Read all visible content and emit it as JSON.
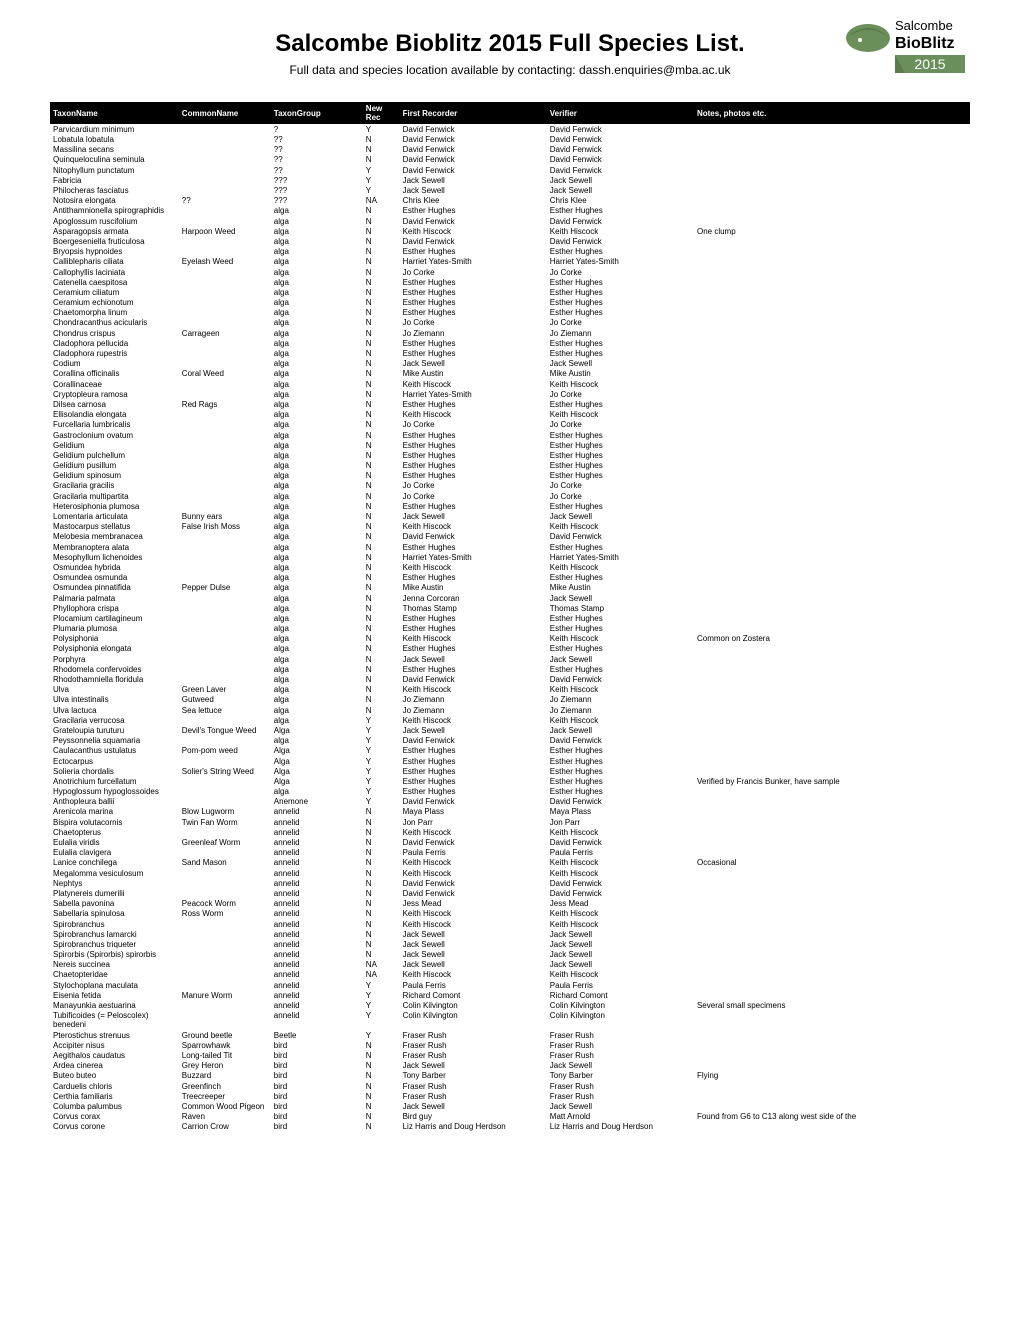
{
  "title": "Salcombe Bioblitz 2015 Full Species List.",
  "subtitle": "Full data and species location available by contacting: dassh.enquiries@mba.ac.uk",
  "logo": {
    "top_text": "Salcombe",
    "mid_text": "BioBlitz",
    "year": "2015",
    "icon_color": "#6b8f5a"
  },
  "table": {
    "columns": [
      "TaxonName",
      "CommonName",
      "TaxonGroup",
      "New Rec",
      "First Recorder",
      "Verifier",
      "Notes, photos etc."
    ],
    "rows": [
      [
        "Parvicardium minimum",
        "",
        "?",
        "Y",
        "David Fenwick",
        "David Fenwick",
        ""
      ],
      [
        "Lobatula lobatula",
        "",
        "??",
        "N",
        "David Fenwick",
        "David Fenwick",
        ""
      ],
      [
        "Massilina secans",
        "",
        "??",
        "N",
        "David Fenwick",
        "David Fenwick",
        ""
      ],
      [
        "Quinqueloculina seminula",
        "",
        "??",
        "N",
        "David Fenwick",
        "David Fenwick",
        ""
      ],
      [
        "Nitophyllum punctatum",
        "",
        "??",
        "Y",
        "David Fenwick",
        "David Fenwick",
        ""
      ],
      [
        "Fabricia",
        "",
        "???",
        "Y",
        "Jack Sewell",
        "Jack Sewell",
        ""
      ],
      [
        "Philocheras fasciatus",
        "",
        "???",
        "Y",
        "Jack Sewell",
        "Jack Sewell",
        ""
      ],
      [
        "Notosira elongata",
        "??",
        "???",
        "NA",
        "Chris Klee",
        "Chris Klee",
        ""
      ],
      [
        "Antithamnionella spirographidis",
        "",
        "alga",
        "N",
        "Esther Hughes",
        "Esther Hughes",
        ""
      ],
      [
        "Apoglossum ruscifolium",
        "",
        "alga",
        "N",
        "David Fenwick",
        "David Fenwick",
        ""
      ],
      [
        "Asparagopsis armata",
        "Harpoon Weed",
        "alga",
        "N",
        "Keith Hiscock",
        "Keith Hiscock",
        "One clump"
      ],
      [
        "Boergeseniella fruticulosa",
        "",
        "alga",
        "N",
        "David Fenwick",
        "David Fenwick",
        ""
      ],
      [
        "Bryopsis hypnoides",
        "",
        "alga",
        "N",
        "Esther Hughes",
        "Esther Hughes",
        ""
      ],
      [
        "Calliblepharis ciliata",
        "Eyelash Weed",
        "alga",
        "N",
        "Harriet Yates-Smith",
        "Harriet Yates-Smith",
        ""
      ],
      [
        "Callophyllis laciniata",
        "",
        "alga",
        "N",
        "Jo Corke",
        "Jo Corke",
        ""
      ],
      [
        "Catenella caespitosa",
        "",
        "alga",
        "N",
        "Esther Hughes",
        "Esther Hughes",
        ""
      ],
      [
        "Ceramium ciliatum",
        "",
        "alga",
        "N",
        "Esther Hughes",
        "Esther Hughes",
        ""
      ],
      [
        "Ceramium echionotum",
        "",
        "alga",
        "N",
        "Esther Hughes",
        "Esther Hughes",
        ""
      ],
      [
        "Chaetomorpha linum",
        "",
        "alga",
        "N",
        "Esther Hughes",
        "Esther Hughes",
        ""
      ],
      [
        "Chondracanthus acicularis",
        "",
        "alga",
        "N",
        "Jo Corke",
        "Jo Corke",
        ""
      ],
      [
        "Chondrus crispus",
        "Carrageen",
        "alga",
        "N",
        "Jo Ziemann",
        "Jo Ziemann",
        ""
      ],
      [
        "Cladophora pellucida",
        "",
        "alga",
        "N",
        "Esther Hughes",
        "Esther Hughes",
        ""
      ],
      [
        "Cladophora rupestris",
        "",
        "alga",
        "N",
        "Esther Hughes",
        "Esther Hughes",
        ""
      ],
      [
        "Codium",
        "",
        "alga",
        "N",
        "Jack Sewell",
        "Jack Sewell",
        ""
      ],
      [
        "Corallina officinalis",
        "Coral Weed",
        "alga",
        "N",
        "Mike Austin",
        "Mike Austin",
        ""
      ],
      [
        "Corallinaceae",
        "",
        "alga",
        "N",
        "Keith Hiscock",
        "Keith Hiscock",
        ""
      ],
      [
        "Cryptopleura ramosa",
        "",
        "alga",
        "N",
        "Harriet Yates-Smith",
        "Jo Corke",
        ""
      ],
      [
        "Dilsea carnosa",
        "Red Rags",
        "alga",
        "N",
        "Esther Hughes",
        "Esther Hughes",
        ""
      ],
      [
        "Ellisolandia elongata",
        "",
        "alga",
        "N",
        "Keith Hiscock",
        "Keith Hiscock",
        ""
      ],
      [
        "Furcellaria lumbricalis",
        "",
        "alga",
        "N",
        "Jo Corke",
        "Jo Corke",
        ""
      ],
      [
        "Gastroclonium ovatum",
        "",
        "alga",
        "N",
        "Esther Hughes",
        "Esther Hughes",
        ""
      ],
      [
        "Gelidium",
        "",
        "alga",
        "N",
        "Esther Hughes",
        "Esther Hughes",
        ""
      ],
      [
        "Gelidium pulchellum",
        "",
        "alga",
        "N",
        "Esther Hughes",
        "Esther Hughes",
        ""
      ],
      [
        "Gelidium pusillum",
        "",
        "alga",
        "N",
        "Esther Hughes",
        "Esther Hughes",
        ""
      ],
      [
        "Gelidium spinosum",
        "",
        "alga",
        "N",
        "Esther Hughes",
        "Esther Hughes",
        ""
      ],
      [
        "Gracilaria gracilis",
        "",
        "alga",
        "N",
        "Jo Corke",
        "Jo Corke",
        ""
      ],
      [
        "Gracilaria multipartita",
        "",
        "alga",
        "N",
        "Jo Corke",
        "Jo Corke",
        ""
      ],
      [
        "Heterosiphonia plumosa",
        "",
        "alga",
        "N",
        "Esther Hughes",
        "Esther Hughes",
        ""
      ],
      [
        "Lomentaria articulata",
        "Bunny ears",
        "alga",
        "N",
        "Jack Sewell",
        "Jack Sewell",
        ""
      ],
      [
        "Mastocarpus stellatus",
        "False Irish Moss",
        "alga",
        "N",
        "Keith Hiscock",
        "Keith Hiscock",
        ""
      ],
      [
        "Melobesia membranacea",
        "",
        "alga",
        "N",
        "David Fenwick",
        "David Fenwick",
        ""
      ],
      [
        "Membranoptera alata",
        "",
        "alga",
        "N",
        "Esther Hughes",
        "Esther Hughes",
        ""
      ],
      [
        "Mesophyllum lichenoides",
        "",
        "alga",
        "N",
        "Harriet Yates-Smith",
        "Harriet Yates-Smith",
        ""
      ],
      [
        "Osmundea hybrida",
        "",
        "alga",
        "N",
        "Keith Hiscock",
        "Keith Hiscock",
        ""
      ],
      [
        "Osmundea osmunda",
        "",
        "alga",
        "N",
        "Esther Hughes",
        "Esther Hughes",
        ""
      ],
      [
        "Osmundea pinnatifida",
        "Pepper Dulse",
        "alga",
        "N",
        "Mike Austin",
        "Mike Austin",
        ""
      ],
      [
        "Palmaria palmata",
        "",
        "alga",
        "N",
        "Jenna Corcoran",
        "Jack Sewell",
        ""
      ],
      [
        "Phyllophora crispa",
        "",
        "alga",
        "N",
        "Thomas Stamp",
        "Thomas Stamp",
        ""
      ],
      [
        "Plocamium cartilagineum",
        "",
        "alga",
        "N",
        "Esther Hughes",
        "Esther Hughes",
        ""
      ],
      [
        "Plumaria plumosa",
        "",
        "alga",
        "N",
        "Esther Hughes",
        "Esther Hughes",
        ""
      ],
      [
        "Polysiphonia",
        "",
        "alga",
        "N",
        "Keith Hiscock",
        "Keith Hiscock",
        "Common on Zostera"
      ],
      [
        "Polysiphonia elongata",
        "",
        "alga",
        "N",
        "Esther Hughes",
        "Esther Hughes",
        ""
      ],
      [
        "Porphyra",
        "",
        "alga",
        "N",
        "Jack Sewell",
        "Jack Sewell",
        ""
      ],
      [
        "Rhodomela confervoides",
        "",
        "alga",
        "N",
        "Esther Hughes",
        "Esther Hughes",
        ""
      ],
      [
        "Rhodothamniella floridula",
        "",
        "alga",
        "N",
        "David Fenwick",
        "David Fenwick",
        ""
      ],
      [
        "Ulva",
        "Green Laver",
        "alga",
        "N",
        "Keith Hiscock",
        "Keith Hiscock",
        ""
      ],
      [
        "Ulva intestinalis",
        "Gutweed",
        "alga",
        "N",
        "Jo Ziemann",
        "Jo Ziemann",
        ""
      ],
      [
        "Ulva lactuca",
        "Sea lettuce",
        "alga",
        "N",
        "Jo Ziemann",
        "Jo Ziemann",
        ""
      ],
      [
        "Gracilaria verrucosa",
        "",
        "alga",
        "Y",
        "Keith Hiscock",
        "Keith Hiscock",
        ""
      ],
      [
        "Grateloupia turuturu",
        "Devil's Tongue Weed",
        "Alga",
        "Y",
        "Jack Sewell",
        "Jack Sewell",
        ""
      ],
      [
        "Peyssonnelia squamaria",
        "",
        "alga",
        "Y",
        "David Fenwick",
        "David Fenwick",
        ""
      ],
      [
        "Caulacanthus ustulatus",
        "Pom-pom weed",
        "Alga",
        "Y",
        "Esther Hughes",
        "Esther Hughes",
        ""
      ],
      [
        "Ectocarpus",
        "",
        "Alga",
        "Y",
        "Esther Hughes",
        "Esther Hughes",
        ""
      ],
      [
        "Solieria chordalis",
        "Solier's String Weed",
        "Alga",
        "Y",
        "Esther Hughes",
        "Esther Hughes",
        ""
      ],
      [
        "Anotrichium furcellatum",
        "",
        "Alga",
        "Y",
        "Esther Hughes",
        "Esther Hughes",
        "Verified by Francis Bunker, have sample"
      ],
      [
        "Hypoglossum hypoglossoides",
        "",
        "alga",
        "Y",
        "Esther Hughes",
        "Esther Hughes",
        ""
      ],
      [
        "Anthopleura ballii",
        "",
        "Anemone",
        "Y",
        "David Fenwick",
        "David Fenwick",
        ""
      ],
      [
        "Arenicola marina",
        "Blow Lugworm",
        "annelid",
        "N",
        "Maya Plass",
        "Maya Plass",
        ""
      ],
      [
        "Bispira volutacornis",
        "Twin Fan Worm",
        "annelid",
        "N",
        "Jon Parr",
        "Jon Parr",
        ""
      ],
      [
        "Chaetopterus",
        "",
        "annelid",
        "N",
        "Keith Hiscock",
        "Keith Hiscock",
        ""
      ],
      [
        "Eulalia viridis",
        "Greenleaf Worm",
        "annelid",
        "N",
        "David Fenwick",
        "David Fenwick",
        ""
      ],
      [
        "Eulalia clavigera",
        "",
        "annelid",
        "N",
        "Paula Ferris",
        "Paula Ferris",
        ""
      ],
      [
        "Lanice conchilega",
        "Sand Mason",
        "annelid",
        "N",
        "Keith Hiscock",
        "Keith Hiscock",
        "Occasional"
      ],
      [
        "Megalomma vesiculosum",
        "",
        "annelid",
        "N",
        "Keith Hiscock",
        "Keith Hiscock",
        ""
      ],
      [
        "Nephtys",
        "",
        "annelid",
        "N",
        "David Fenwick",
        "David Fenwick",
        ""
      ],
      [
        "Platynereis dumerilii",
        "",
        "annelid",
        "N",
        "David Fenwick",
        "David Fenwick",
        ""
      ],
      [
        "Sabella pavonina",
        "Peacock Worm",
        "annelid",
        "N",
        "Jess Mead",
        "Jess Mead",
        ""
      ],
      [
        "Sabellaria spinulosa",
        "Ross Worm",
        "annelid",
        "N",
        "Keith Hiscock",
        "Keith Hiscock",
        ""
      ],
      [
        "Spirobranchus",
        "",
        "annelid",
        "N",
        "Keith Hiscock",
        "Keith Hiscock",
        ""
      ],
      [
        "Spirobranchus lamarcki",
        "",
        "annelid",
        "N",
        "Jack Sewell",
        "Jack Sewell",
        ""
      ],
      [
        "Spirobranchus triqueter",
        "",
        "annelid",
        "N",
        "Jack Sewell",
        "Jack Sewell",
        ""
      ],
      [
        "Spirorbis (Spirorbis) spirorbis",
        "",
        "annelid",
        "N",
        "Jack Sewell",
        "Jack Sewell",
        ""
      ],
      [
        "Nereis succinea",
        "",
        "annelid",
        "NA",
        "Jack Sewell",
        "Jack Sewell",
        ""
      ],
      [
        "Chaetopteridae",
        "",
        "annelid",
        "NA",
        "Keith Hiscock",
        "Keith Hiscock",
        ""
      ],
      [
        "Stylochoplana maculata",
        "",
        "annelid",
        "Y",
        "Paula Ferris",
        "Paula Ferris",
        ""
      ],
      [
        "Eisenia fetida",
        "Manure Worm",
        "annelid",
        "Y",
        "Richard Comont",
        "Richard Comont",
        ""
      ],
      [
        "Manayunkia aestuarina",
        "",
        "annelid",
        "Y",
        "Colin Kilvington",
        "Colin Kilvington",
        "Several small specimens"
      ],
      [
        "Tubificoides (= Peloscolex) benedeni",
        "",
        "annelid",
        "Y",
        "Colin Kilvington",
        "Colin Kilvington",
        ""
      ],
      [
        "Pterostichus strenuus",
        "Ground beetle",
        "Beetle",
        "Y",
        "Fraser Rush",
        "Fraser Rush",
        ""
      ],
      [
        "Accipiter nisus",
        "Sparrowhawk",
        "bird",
        "N",
        "Fraser Rush",
        "Fraser Rush",
        ""
      ],
      [
        "Aegithalos caudatus",
        "Long-tailed Tit",
        "bird",
        "N",
        "Fraser Rush",
        "Fraser Rush",
        ""
      ],
      [
        "Ardea cinerea",
        "Grey Heron",
        "bird",
        "N",
        "Jack Sewell",
        "Jack Sewell",
        ""
      ],
      [
        "Buteo buteo",
        "Buzzard",
        "bird",
        "N",
        "Tony Barber",
        "Tony Barber",
        "Flying"
      ],
      [
        "Carduelis chloris",
        "Greenfinch",
        "bird",
        "N",
        "Fraser Rush",
        "Fraser Rush",
        ""
      ],
      [
        "Certhia familiaris",
        "Treecreeper",
        "bird",
        "N",
        "Fraser Rush",
        "Fraser Rush",
        ""
      ],
      [
        "Columba palumbus",
        "Common Wood Pigeon",
        "bird",
        "N",
        "Jack Sewell",
        "Jack Sewell",
        ""
      ],
      [
        "Corvus corax",
        "Raven",
        "bird",
        "N",
        "Bird guy",
        "Matt Arnold",
        "Found from G6 to C13 along west side of the"
      ],
      [
        "Corvus corone",
        "Carrion Crow",
        "bird",
        "N",
        "Liz Harris and Doug Herdson",
        "Liz Harris and Doug Herdson",
        ""
      ]
    ]
  }
}
